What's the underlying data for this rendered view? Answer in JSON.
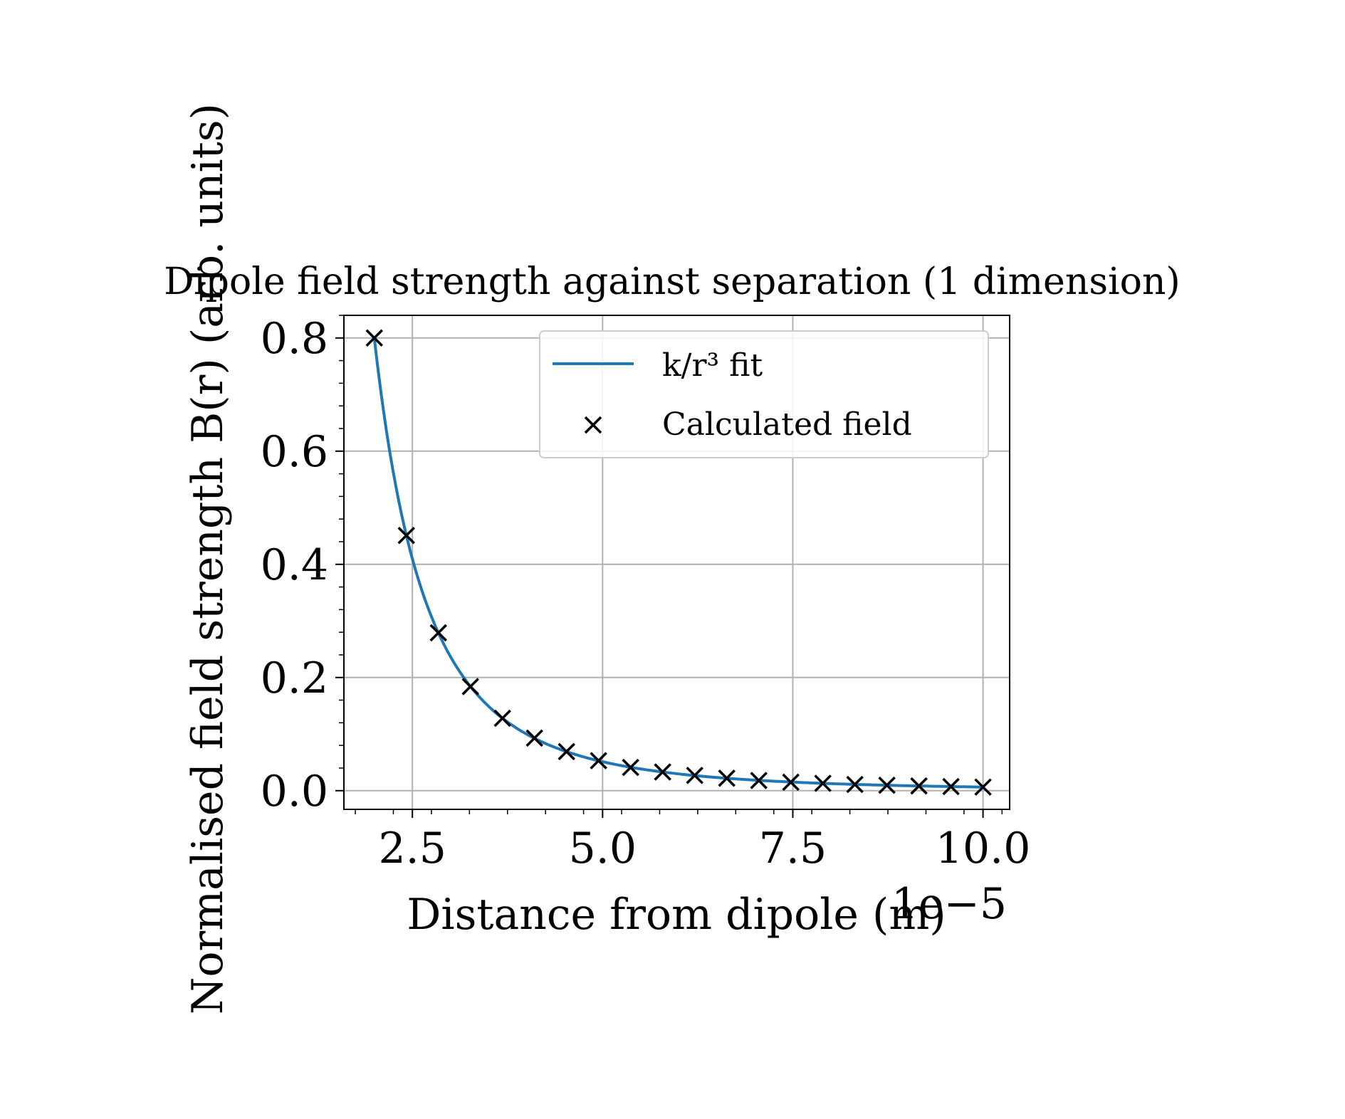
{
  "chart_data": {
    "type": "scatter",
    "title": "Dipole field strength against separation (1 dimension)",
    "xlabel": "Distance from dipole (m)",
    "ylabel": "Normalised field strength B(r) (arb. units)",
    "x_offset_text": "1e−5",
    "xlim": [
      1.6,
      10.35
    ],
    "ylim": [
      -0.033,
      0.84
    ],
    "xticks": [
      2.5,
      5.0,
      7.5,
      10.0
    ],
    "xtick_labels": [
      "2.5",
      "5.0",
      "7.5",
      "10.0"
    ],
    "yticks": [
      0.0,
      0.2,
      0.4,
      0.6,
      0.8
    ],
    "ytick_labels": [
      "0.0",
      "0.2",
      "0.4",
      "0.6",
      "0.8"
    ],
    "grid": true,
    "minor_ticks": true,
    "legend_position": "upper right",
    "legend": [
      "k/r³ fit",
      "Calculated field"
    ],
    "series": [
      {
        "name": "k/r³ fit",
        "kind": "line",
        "color": "#1f77b4",
        "k": 6.4,
        "x_range": [
          2.0,
          10.0
        ]
      },
      {
        "name": "Calculated field",
        "kind": "scatter",
        "marker": "x",
        "color": "#000000",
        "x": [
          2.0,
          2.421,
          2.842,
          3.263,
          3.684,
          4.105,
          4.526,
          4.947,
          5.368,
          5.789,
          6.211,
          6.632,
          7.053,
          7.474,
          7.895,
          8.316,
          8.737,
          9.158,
          9.579,
          10.0
        ],
        "y": [
          0.8,
          0.451,
          0.279,
          0.184,
          0.128,
          0.093,
          0.069,
          0.053,
          0.041,
          0.033,
          0.027,
          0.022,
          0.018,
          0.015,
          0.013,
          0.011,
          0.0096,
          0.0083,
          0.0073,
          0.0064
        ]
      }
    ]
  }
}
